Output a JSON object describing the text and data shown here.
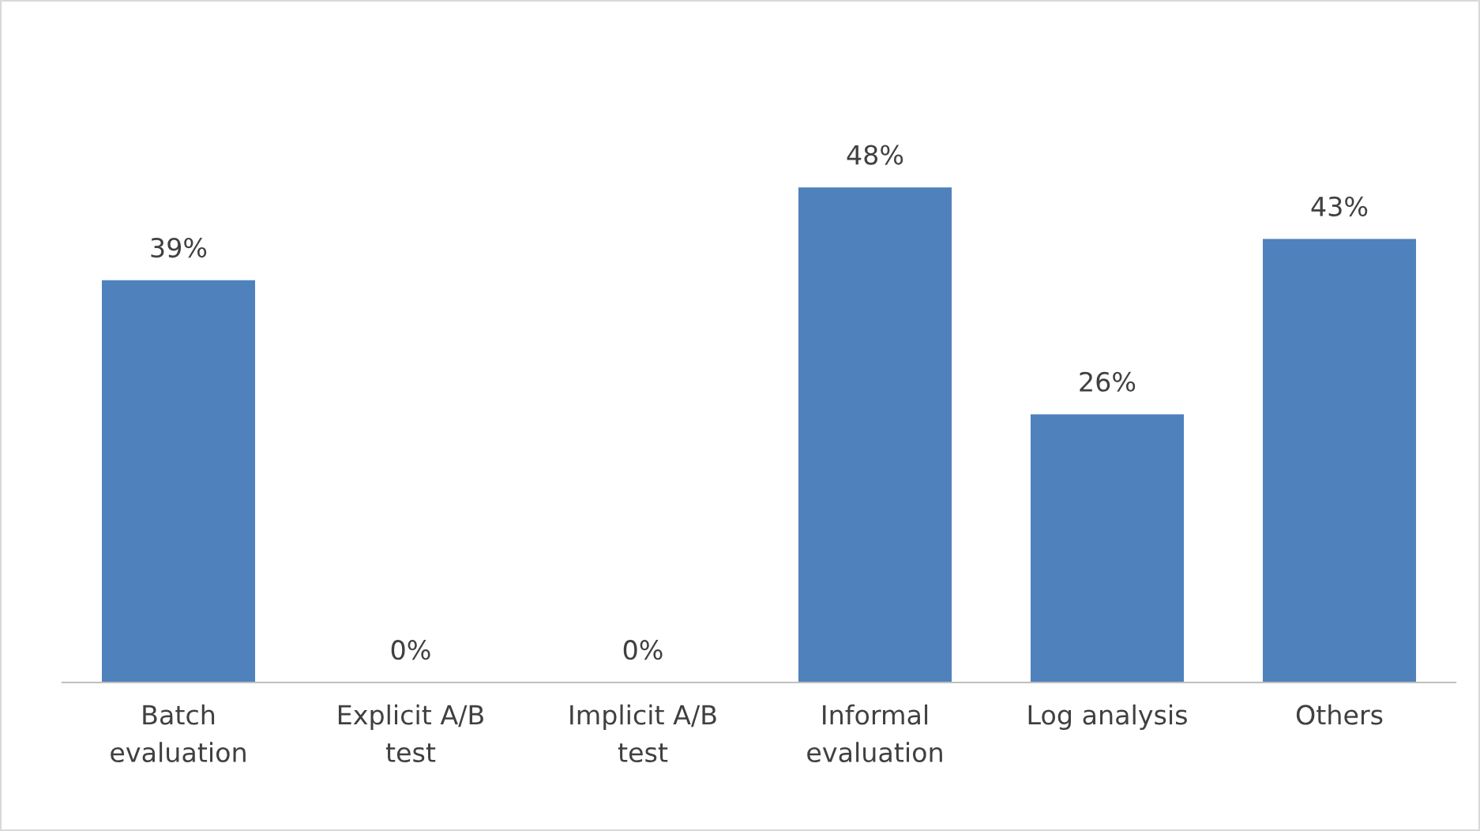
{
  "chart_data": {
    "type": "bar",
    "categories": [
      "Batch\nevaluation",
      "Explicit A/B\ntest",
      "Implicit A/B\ntest",
      "Informal\nevaluation",
      "Log analysis",
      "Others"
    ],
    "values": [
      39,
      0,
      0,
      48,
      26,
      43
    ],
    "value_labels": [
      "39%",
      "0%",
      "0%",
      "48%",
      "26%",
      "43%"
    ],
    "color": "#4f81bd",
    "grid": false,
    "legend": false
  }
}
